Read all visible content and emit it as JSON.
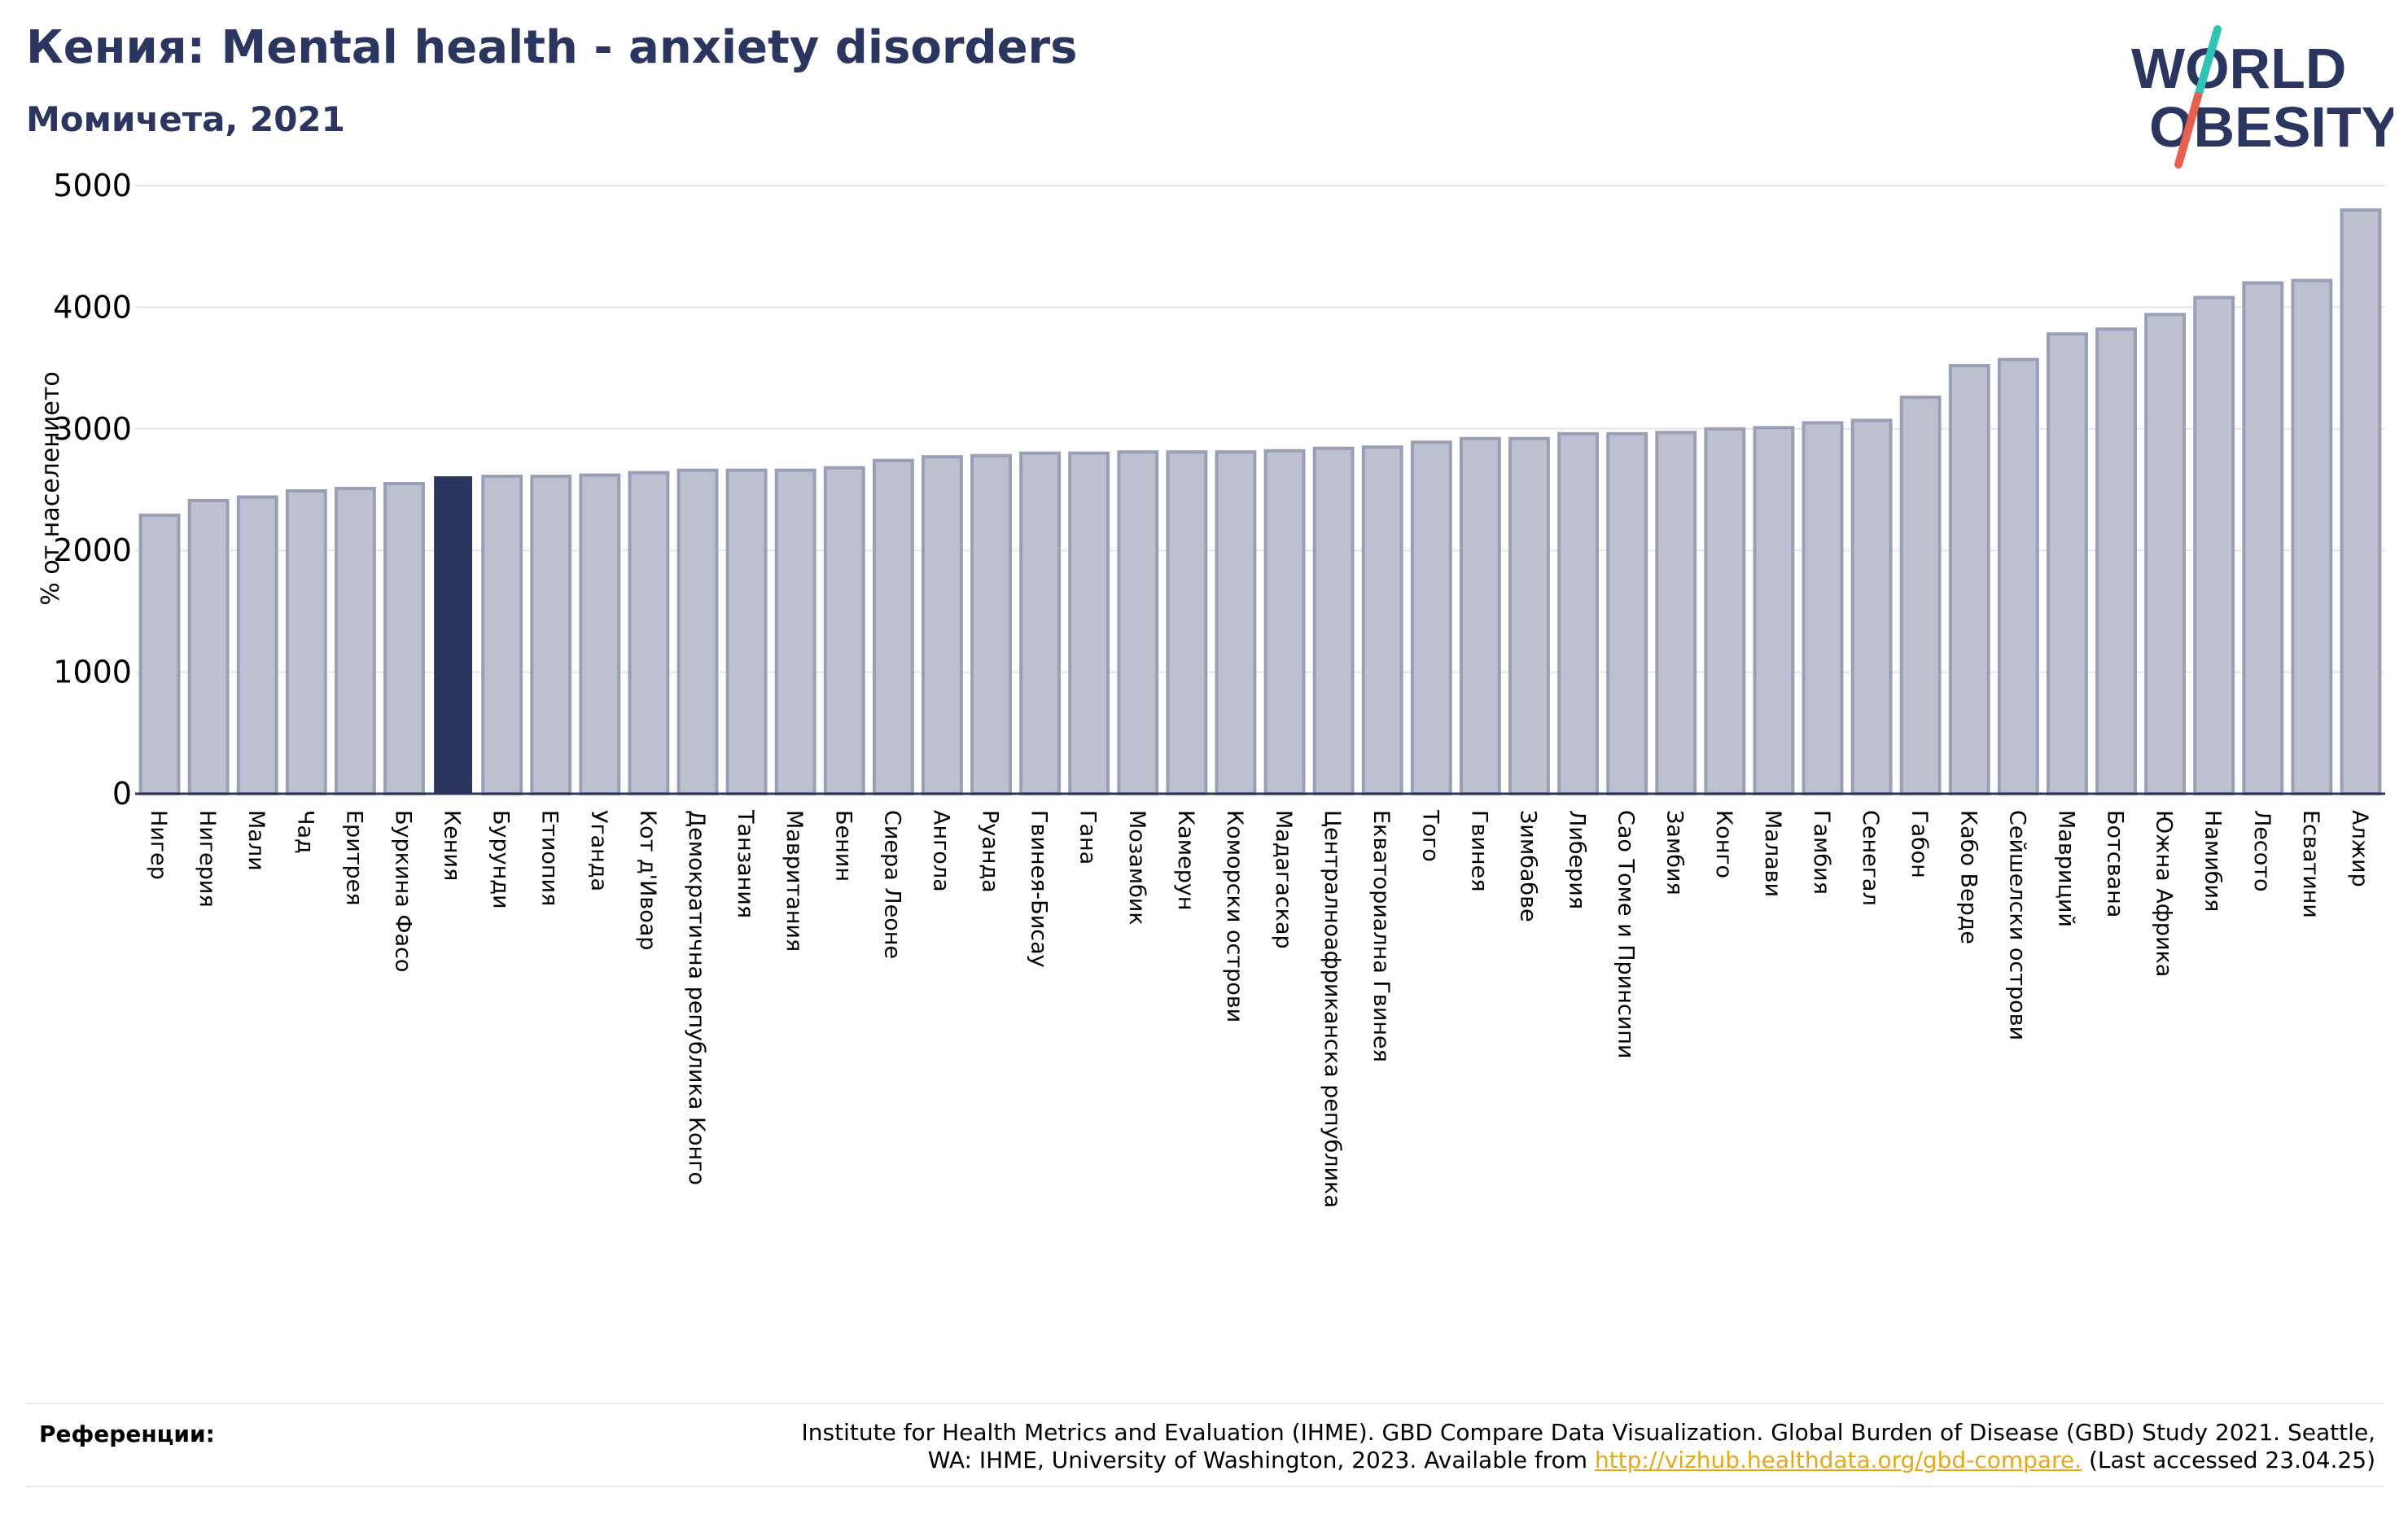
{
  "header": {
    "title": "Кения: Mental health - anxiety disorders",
    "subtitle": "Момичета, 2021"
  },
  "logo": {
    "line1": "WORLD",
    "line2": "OBESITY",
    "text_color": "#2a3560",
    "slash_colors": [
      "#2ec4b6",
      "#e8604c"
    ]
  },
  "colors": {
    "bar_default": "#bcc0cf",
    "bar_default_stroke": "#9a9fb8",
    "bar_highlight": "#2a3560",
    "grid": "#e6e6e6",
    "axis": "#2a3560"
  },
  "chart_data": {
    "type": "bar",
    "ylabel": "% от населението",
    "ylim": [
      0,
      5000
    ],
    "yticks": [
      0,
      1000,
      2000,
      3000,
      4000,
      5000
    ],
    "grid": true,
    "highlight": "Кения",
    "categories": [
      "Нигер",
      "Нигерия",
      "Мали",
      "Чад",
      "Еритрея",
      "Буркина Фасо",
      "Кения",
      "Бурунди",
      "Етиопия",
      "Уганда",
      "Кот д'Ивоар",
      "Демократична република Конго",
      "Танзания",
      "Мавритания",
      "Бенин",
      "Сиера Леоне",
      "Ангола",
      "Руанда",
      "Гвинея-Бисау",
      "Гана",
      "Мозамбик",
      "Камерун",
      "Коморски острови",
      "Мадагаскар",
      "Централноафриканска република",
      "Екваториална Гвинея",
      "Того",
      "Гвинея",
      "Зимбабве",
      "Либерия",
      "Сао Томе и Принсипи",
      "Замбия",
      "Конго",
      "Малави",
      "Гамбия",
      "Сенегал",
      "Габон",
      "Кабо Верде",
      "Сейшелски острови",
      "Мавриций",
      "Ботсвана",
      "Южна Африка",
      "Намибия",
      "Лесото",
      "Есватини",
      "Алжир"
    ],
    "values": [
      2290,
      2410,
      2440,
      2490,
      2510,
      2550,
      2610,
      2610,
      2610,
      2620,
      2640,
      2660,
      2660,
      2660,
      2680,
      2740,
      2770,
      2780,
      2800,
      2800,
      2810,
      2810,
      2810,
      2820,
      2840,
      2850,
      2890,
      2920,
      2920,
      2960,
      2960,
      2970,
      3000,
      3010,
      3050,
      3070,
      3260,
      3520,
      3570,
      3780,
      3820,
      3940,
      4080,
      4200,
      4220,
      4800
    ]
  },
  "references": {
    "label": "Референции:",
    "line1": "Institute for Health Metrics and Evaluation (IHME). GBD Compare Data Visualization. Global Burden of Disease (GBD) Study 2021. Seattle,",
    "line2_pre": "WA: IHME, University of Washington, 2023. Available from ",
    "link": "http://vizhub.healthdata.org/gbd-compare.",
    "line2_post": " (Last accessed 23.04.25)"
  }
}
